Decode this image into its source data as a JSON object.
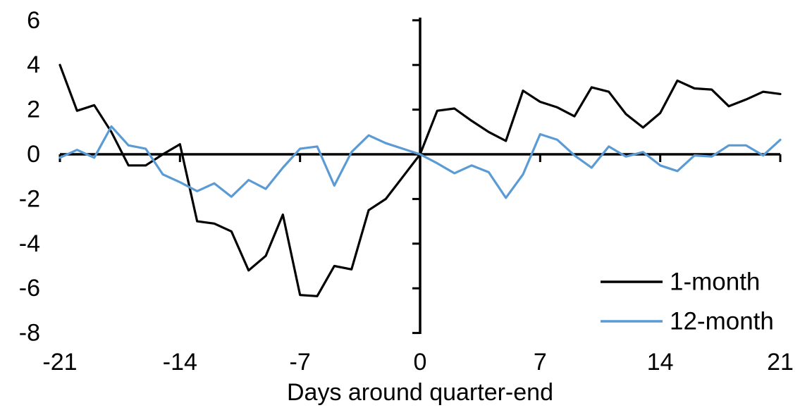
{
  "chart_data": {
    "type": "line",
    "title": "",
    "xlabel": "Days around quarter-end",
    "ylabel": "",
    "x": [
      -21,
      -20,
      -19,
      -18,
      -17,
      -16,
      -15,
      -14,
      -13,
      -12,
      -11,
      -10,
      -9,
      -8,
      -7,
      -6,
      -5,
      -4,
      -3,
      -2,
      -1,
      0,
      1,
      2,
      3,
      4,
      5,
      6,
      7,
      8,
      9,
      10,
      11,
      12,
      13,
      14,
      15,
      16,
      17,
      18,
      19,
      20,
      21
    ],
    "series": [
      {
        "name": "1-month",
        "color": "#000000",
        "values": [
          4.0,
          1.95,
          2.2,
          1.0,
          -0.5,
          -0.5,
          0.0,
          0.45,
          -3.0,
          -3.1,
          -3.45,
          -5.2,
          -4.55,
          -2.7,
          -6.3,
          -6.35,
          -5.0,
          -5.15,
          -2.5,
          -2.0,
          -1.0,
          0.0,
          1.95,
          2.05,
          1.5,
          1.0,
          0.6,
          2.85,
          2.35,
          2.1,
          1.7,
          3.0,
          2.8,
          1.8,
          1.2,
          1.85,
          3.3,
          2.95,
          2.9,
          2.15,
          2.45,
          2.8,
          2.7
        ]
      },
      {
        "name": "12-month",
        "color": "#5B9BD5",
        "values": [
          -0.15,
          0.2,
          -0.15,
          1.25,
          0.4,
          0.25,
          -0.9,
          -1.25,
          -1.65,
          -1.3,
          -1.9,
          -1.15,
          -1.55,
          -0.6,
          0.25,
          0.35,
          -1.4,
          0.1,
          0.85,
          0.5,
          0.25,
          0.0,
          -0.4,
          -0.85,
          -0.5,
          -0.8,
          -1.95,
          -0.9,
          0.9,
          0.65,
          -0.05,
          -0.6,
          0.35,
          -0.1,
          0.1,
          -0.5,
          -0.75,
          -0.05,
          -0.1,
          0.4,
          0.4,
          -0.05,
          0.65
        ]
      }
    ],
    "xlim": [
      -21,
      21
    ],
    "ylim": [
      -8,
      6
    ],
    "x_ticks": [
      -21,
      -14,
      -7,
      0,
      7,
      14,
      21
    ],
    "y_ticks": [
      6,
      4,
      2,
      0,
      -2,
      -4,
      -6,
      -8
    ],
    "grid": false,
    "legend_position": "inside-bottom-right",
    "background_color": "#ffffff",
    "axis_color": "#000000"
  }
}
